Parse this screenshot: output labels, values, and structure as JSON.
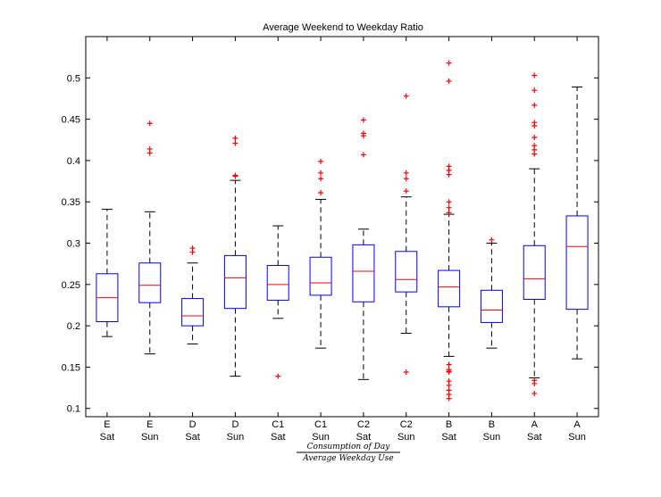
{
  "chart_data": {
    "type": "boxplot",
    "title": "Average Weekend to Weekday Ratio",
    "xlabel": {
      "numerator": "Consumption of Day",
      "denominator": "Average Weekday Use"
    },
    "ylabel": "",
    "ylim": [
      0.09,
      0.55
    ],
    "yticks": [
      "0.1",
      "0.15",
      "0.2",
      "0.25",
      "0.3",
      "0.35",
      "0.4",
      "0.45",
      "0.5"
    ],
    "ytick_values": [
      0.1,
      0.15,
      0.2,
      0.25,
      0.3,
      0.35,
      0.4,
      0.45,
      0.5
    ],
    "grid": false,
    "colors": {
      "box": "#0000ff",
      "median": "#ff0000",
      "whisker": "#000000",
      "outlier": "#ff0000"
    },
    "categories": [
      {
        "group": "E",
        "day": "Sat"
      },
      {
        "group": "E",
        "day": "Sun"
      },
      {
        "group": "D",
        "day": "Sat"
      },
      {
        "group": "D",
        "day": "Sun"
      },
      {
        "group": "C1",
        "day": "Sat"
      },
      {
        "group": "C1",
        "day": "Sun"
      },
      {
        "group": "C2",
        "day": "Sat"
      },
      {
        "group": "C2",
        "day": "Sun"
      },
      {
        "group": "B",
        "day": "Sat"
      },
      {
        "group": "B",
        "day": "Sun"
      },
      {
        "group": "A",
        "day": "Sat"
      },
      {
        "group": "A",
        "day": "Sun"
      }
    ],
    "boxes": [
      {
        "whisker_low": 0.187,
        "q1": 0.205,
        "median": 0.234,
        "q3": 0.263,
        "whisker_high": 0.341,
        "outliers": []
      },
      {
        "whisker_low": 0.166,
        "q1": 0.228,
        "median": 0.249,
        "q3": 0.276,
        "whisker_high": 0.338,
        "outliers": [
          0.409,
          0.414,
          0.445
        ]
      },
      {
        "whisker_low": 0.178,
        "q1": 0.2,
        "median": 0.212,
        "q3": 0.233,
        "whisker_high": 0.276,
        "outliers": [
          0.289,
          0.294
        ]
      },
      {
        "whisker_low": 0.139,
        "q1": 0.221,
        "median": 0.258,
        "q3": 0.285,
        "whisker_high": 0.376,
        "outliers": [
          0.381,
          0.382,
          0.421,
          0.427
        ]
      },
      {
        "whisker_low": 0.209,
        "q1": 0.231,
        "median": 0.25,
        "q3": 0.273,
        "whisker_high": 0.321,
        "outliers": [
          0.139
        ]
      },
      {
        "whisker_low": 0.173,
        "q1": 0.237,
        "median": 0.252,
        "q3": 0.283,
        "whisker_high": 0.353,
        "outliers": [
          0.361,
          0.378,
          0.385,
          0.399
        ]
      },
      {
        "whisker_low": 0.135,
        "q1": 0.229,
        "median": 0.266,
        "q3": 0.298,
        "whisker_high": 0.317,
        "outliers": [
          0.407,
          0.43,
          0.433,
          0.449
        ]
      },
      {
        "whisker_low": 0.191,
        "q1": 0.241,
        "median": 0.256,
        "q3": 0.29,
        "whisker_high": 0.356,
        "outliers": [
          0.144,
          0.363,
          0.378,
          0.385,
          0.478
        ]
      },
      {
        "whisker_low": 0.163,
        "q1": 0.223,
        "median": 0.247,
        "q3": 0.267,
        "whisker_high": 0.335,
        "outliers": [
          0.112,
          0.117,
          0.122,
          0.128,
          0.133,
          0.144,
          0.145,
          0.147,
          0.153,
          0.337,
          0.343,
          0.35,
          0.383,
          0.388,
          0.393,
          0.496,
          0.518
        ]
      },
      {
        "whisker_low": 0.173,
        "q1": 0.204,
        "median": 0.219,
        "q3": 0.243,
        "whisker_high": 0.3,
        "outliers": [
          0.304
        ]
      },
      {
        "whisker_low": 0.137,
        "q1": 0.232,
        "median": 0.257,
        "q3": 0.297,
        "whisker_high": 0.39,
        "outliers": [
          0.118,
          0.13,
          0.134,
          0.408,
          0.413,
          0.418,
          0.428,
          0.442,
          0.446,
          0.467,
          0.485,
          0.503
        ]
      },
      {
        "whisker_low": 0.16,
        "q1": 0.22,
        "median": 0.296,
        "q3": 0.333,
        "whisker_high": 0.489,
        "outliers": []
      }
    ]
  }
}
